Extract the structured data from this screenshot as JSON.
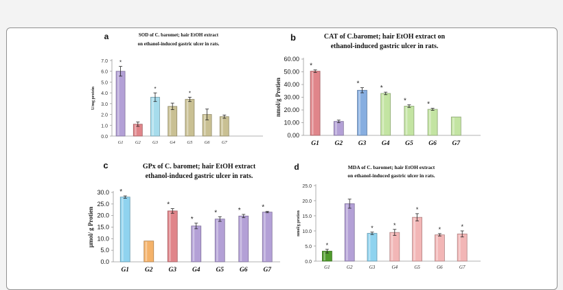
{
  "colors": {
    "purple": "#b3a0d6",
    "red": "#e0858a",
    "cyan": "#a6dcec",
    "olive": "#c9c093",
    "salmon": "#e89a86",
    "blue": "#87aee0",
    "green": "#c3e4a2",
    "lightgreen": "#cce8b0",
    "orange": "#f4b26a",
    "pink": "#f2b6b6",
    "darkgreen": "#4f9a2c",
    "cyan2": "#8fd3ef"
  },
  "chart_data": [
    {
      "id": "a",
      "type": "bar",
      "letter": "a",
      "title_lines": [
        "SOD of C. baromet; hair EtOH extract",
        "on ethanol-induced gastric ulcer in rats."
      ],
      "ylabel": "U/mg protein",
      "categories": [
        "G1",
        "G2",
        "G3",
        "G4",
        "G5",
        "G6",
        "G7"
      ],
      "values": [
        6.0,
        1.1,
        3.6,
        2.75,
        3.4,
        2.0,
        1.8
      ],
      "errors": [
        0.45,
        0.2,
        0.4,
        0.3,
        0.2,
        0.5,
        0.15
      ],
      "stars": [
        true,
        false,
        true,
        false,
        true,
        false,
        false
      ],
      "colors": [
        "purple",
        "red",
        "cyan",
        "olive",
        "olive",
        "olive",
        "olive"
      ],
      "ylim": [
        0,
        7
      ],
      "ticks": [
        "0.0",
        "1.0",
        "2.0",
        "3.0",
        "4.0",
        "5.0",
        "6.0",
        "7.0"
      ]
    },
    {
      "id": "b",
      "type": "bar",
      "letter": "b",
      "title_lines": [
        "CAT of C.baromet; hair EtOH extract on",
        "ethanol-induced gastric ulcer in rats."
      ],
      "ylabel": "nmol/g Protien",
      "categories": [
        "G1",
        "G2",
        "G3",
        "G4",
        "G5",
        "G6",
        "G7"
      ],
      "values": [
        50.5,
        11.0,
        35.5,
        33.0,
        23.0,
        20.5,
        14.5
      ],
      "errors": [
        1.0,
        1.0,
        2.0,
        1.0,
        1.0,
        0.8,
        0.0
      ],
      "stars": [
        true,
        false,
        true,
        true,
        true,
        true,
        false
      ],
      "colors": [
        "red",
        "purple",
        "blue",
        "green",
        "green",
        "green",
        "green"
      ],
      "ylim": [
        0,
        60
      ],
      "ticks": [
        "0.00",
        "10.00",
        "20.00",
        "30.00",
        "40.00",
        "50.00",
        "60.00"
      ]
    },
    {
      "id": "c",
      "type": "bar",
      "letter": "c",
      "title_lines": [
        "GPx of C. baromet; hair EtOH extract",
        "ethanol-induced gastric ulcer in rats."
      ],
      "ylabel": "µmol/ g Protien",
      "categories": [
        "G1",
        "G2",
        "G3",
        "G4",
        "G5",
        "G6",
        "G7"
      ],
      "values": [
        28.0,
        9.0,
        22.0,
        15.5,
        18.5,
        19.8,
        21.5
      ],
      "errors": [
        0.5,
        0.0,
        1.0,
        1.2,
        1.0,
        0.7,
        0.3
      ],
      "stars": [
        true,
        false,
        true,
        true,
        true,
        true,
        true
      ],
      "colors": [
        "cyan2",
        "orange",
        "red",
        "purple",
        "purple",
        "purple",
        "purple"
      ],
      "ylim": [
        0,
        30
      ],
      "ticks": [
        "0.0",
        "5.0",
        "10.0",
        "15.0",
        "20.0",
        "25.0",
        "30.0"
      ]
    },
    {
      "id": "d",
      "type": "bar",
      "letter": "d",
      "title_lines": [
        "MDA of C. baromet; hair EtOH extract",
        "on ethanol-induced gastric ulcer in rats."
      ],
      "ylabel": "nmol/g protien",
      "categories": [
        "G1",
        "G2",
        "G3",
        "G4",
        "G5",
        "G6",
        "G7"
      ],
      "values": [
        3.3,
        19.0,
        9.2,
        9.5,
        14.5,
        8.7,
        9.0
      ],
      "errors": [
        0.6,
        1.5,
        0.4,
        1.0,
        1.2,
        0.4,
        1.0
      ],
      "stars": [
        true,
        false,
        true,
        true,
        true,
        true,
        true
      ],
      "colors": [
        "darkgreen",
        "purple",
        "cyan2",
        "pink",
        "pink",
        "pink",
        "pink"
      ],
      "ylim": [
        0,
        25
      ],
      "ticks": [
        "0.0",
        "5.0",
        "10.0",
        "15.0",
        "20.0",
        "25.0"
      ]
    }
  ]
}
